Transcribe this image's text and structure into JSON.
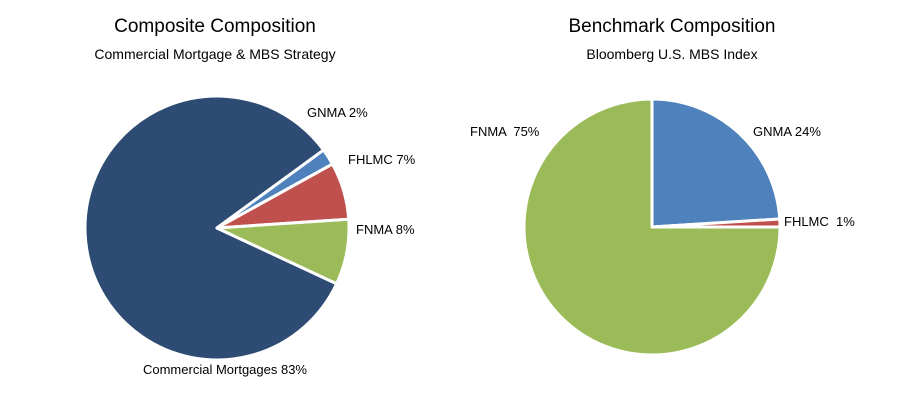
{
  "chart_data": [
    {
      "type": "pie",
      "title": "Composite Composition",
      "subtitle": "Commercial Mortgage & MBS Strategy",
      "categories": [
        "Commercial Mortgages",
        "GNMA",
        "FHLMC",
        "FNMA"
      ],
      "values": [
        83,
        2,
        7,
        8
      ],
      "labels": [
        "Commercial Mortgages 83%",
        "GNMA 2%",
        "FHLMC 7%",
        "FNMA 8%"
      ],
      "colors": [
        "#2e4c73",
        "#4f81bd",
        "#c0504d",
        "#9bbb59"
      ]
    },
    {
      "type": "pie",
      "title": "Benchmark Composition",
      "subtitle": "Bloomberg U.S. MBS Index",
      "categories": [
        "GNMA",
        "FHLMC",
        "FNMA"
      ],
      "values": [
        24,
        1,
        75
      ],
      "labels": [
        "GNMA 24%",
        "FHLMC  1%",
        "FNMA  75%"
      ],
      "colors": [
        "#4f81bd",
        "#c0504d",
        "#9bbb59"
      ]
    }
  ]
}
